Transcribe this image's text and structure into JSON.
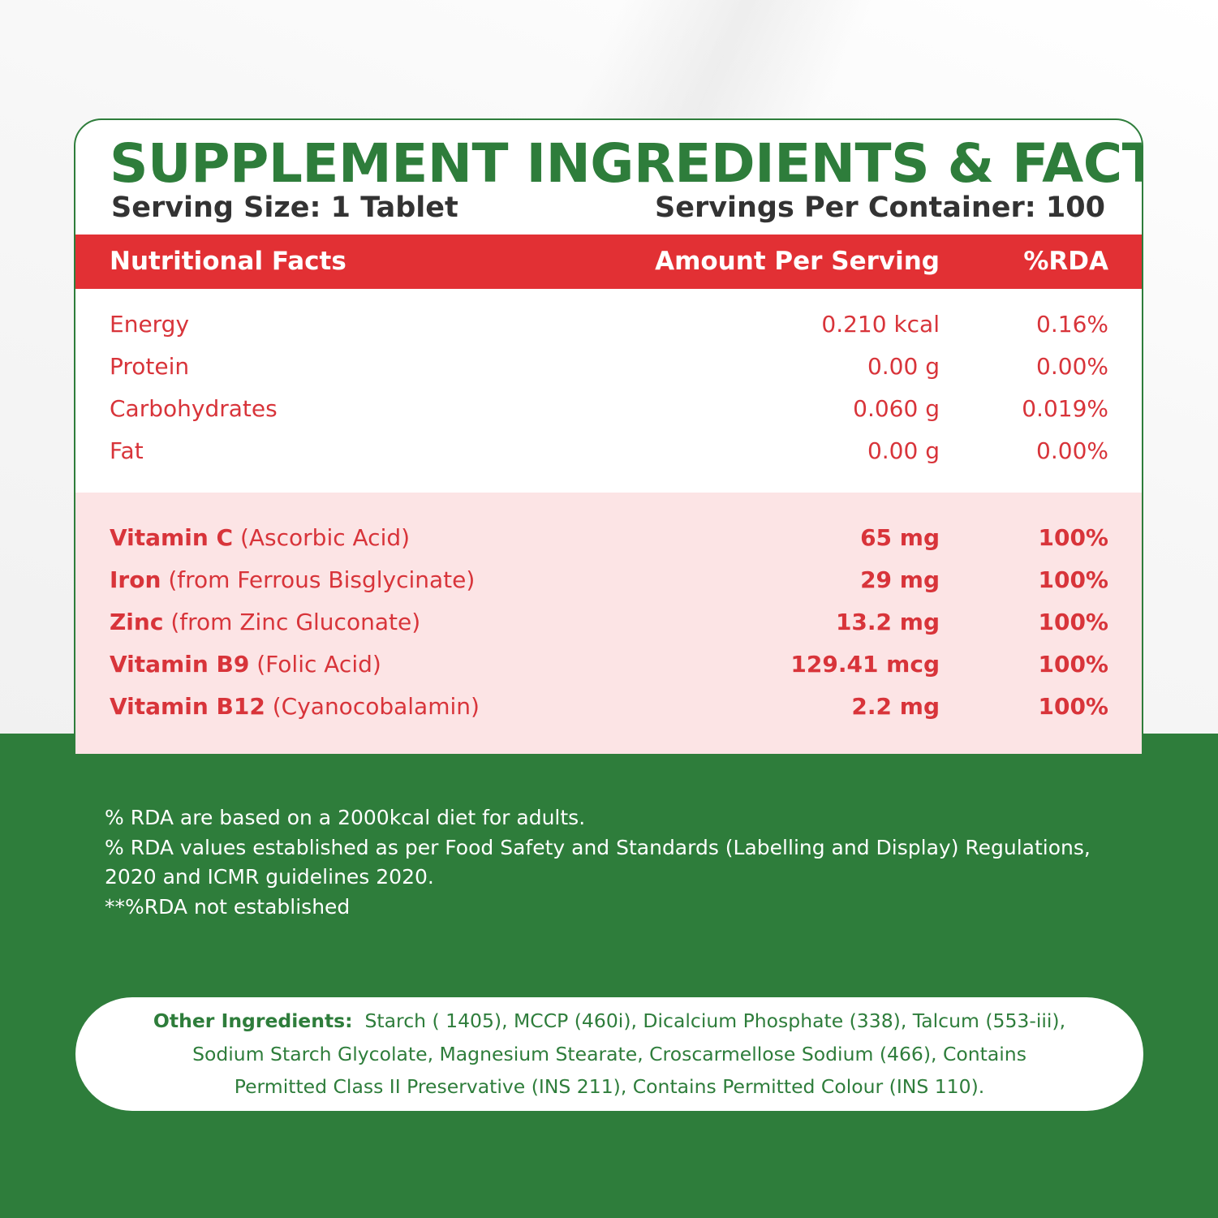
{
  "title": "SUPPLEMENT INGREDIENTS & FACTS",
  "serving_size": "Serving Size: 1 Tablet",
  "servings_per_container": "Servings Per Container: 100",
  "table_header": {
    "name": "Nutritional Facts",
    "amount": "Amount Per Serving",
    "rda": "%RDA"
  },
  "nutrition": [
    {
      "name": "Energy",
      "amount": "0.210 kcal",
      "rda": "0.16%"
    },
    {
      "name": "Protein",
      "amount": "0.00 g",
      "rda": "0.00%"
    },
    {
      "name": "Carbohydrates",
      "amount": "0.060 g",
      "rda": "0.019%"
    },
    {
      "name": "Fat",
      "amount": "0.00 g",
      "rda": "0.00%"
    }
  ],
  "vitamins": [
    {
      "name": "Vitamin C",
      "source": "(Ascorbic Acid)",
      "amount": "65 mg",
      "rda": "100%"
    },
    {
      "name": "Iron",
      "source": "(from Ferrous Bisglycinate)",
      "amount": "29 mg",
      "rda": "100%"
    },
    {
      "name": "Zinc",
      "source": "(from Zinc Gluconate)",
      "amount": "13.2 mg",
      "rda": "100%"
    },
    {
      "name": "Vitamin B9",
      "source": "(Folic Acid)",
      "amount": "129.41 mcg",
      "rda": "100%"
    },
    {
      "name": "Vitamin B12",
      "source": "(Cyanocobalamin)",
      "amount": "2.2 mg",
      "rda": "100%"
    }
  ],
  "notes": [
    "% RDA are based on a 2000kcal diet for adults.",
    "% RDA values established as per Food Safety and Standards (Labelling and Display) Regulations,",
    "2020 and ICMR guidelines 2020.",
    "**%RDA not established"
  ],
  "other_ingredients": {
    "label": "Other Ingredients:",
    "line1": "Starch ( 1405), MCCP (460i), Dicalcium Phosphate (338), Talcum (553-iii),",
    "line2": "Sodium Starch Glycolate, Magnesium Stearate, Croscarmellose Sodium (466), Contains",
    "line3": "Permitted Class II Preservative (INS 211), Contains Permitted Colour (INS 110)."
  },
  "colors": {
    "brand_green": "#2e7d3b",
    "header_red": "#e23034",
    "text_red": "#d8343a",
    "pink_band": "#fce4e5"
  }
}
